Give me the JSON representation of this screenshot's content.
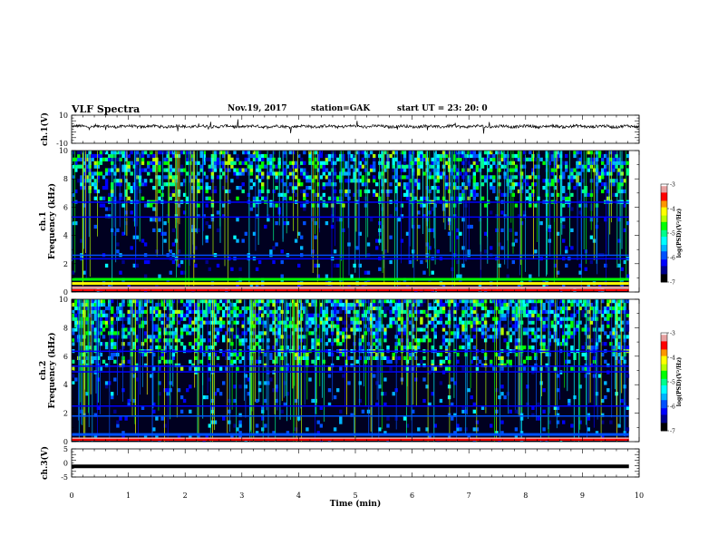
{
  "header": {
    "title": "VLF Spectra",
    "date": "Nov.19, 2017",
    "station": "station=GAK",
    "start": "start  UT =   23: 20: 0"
  },
  "colors": {
    "background": "#000020",
    "trace": "#000000",
    "colormap": [
      "#000000",
      "#00008c",
      "#0000ff",
      "#0050ff",
      "#00b4ff",
      "#00ffff",
      "#00ff8c",
      "#00ff00",
      "#b4ff00",
      "#ffff00",
      "#ff9600",
      "#ff0000",
      "#e6a0a0",
      "#ffffff"
    ]
  },
  "chart_data": [
    {
      "type": "line",
      "name": "ch1-waveform",
      "ylabel": "ch.1(V)",
      "ylim": [
        -10,
        10
      ],
      "yticks": [
        "10",
        "-10"
      ],
      "xlim": [
        0,
        10
      ],
      "trace_level": 2.0,
      "trace_noise": 1.0
    },
    {
      "type": "heatmap",
      "name": "ch1-spectrogram",
      "ylabel": "ch.1\nFrequency (kHz)",
      "ylim": [
        0,
        10
      ],
      "yticks": [
        "0",
        "2",
        "4",
        "6",
        "8",
        "10"
      ],
      "xlim": [
        0,
        9.82
      ],
      "colorbar": {
        "label": "log(PSD)(V²/Hz)",
        "range": [
          -7,
          -3
        ],
        "ticks": [
          "-3",
          "-4",
          "-5",
          "-6",
          "-7"
        ]
      },
      "bands": [
        {
          "f": 0.3,
          "level": -3.2
        },
        {
          "f": 0.6,
          "level": -4.1
        },
        {
          "f": 0.9,
          "level": -4.6
        },
        {
          "f": 2.35,
          "level": -6.2
        },
        {
          "f": 2.6,
          "level": -6.0
        },
        {
          "f": 5.3,
          "level": -6.3
        },
        {
          "f": 6.35,
          "level": -6.3
        }
      ],
      "high_freq_activity_above_khz": 6.0
    },
    {
      "type": "heatmap",
      "name": "ch2-spectrogram",
      "ylabel": "ch.2\nFrequency (kHz)",
      "ylim": [
        0,
        10
      ],
      "yticks": [
        "0",
        "2",
        "4",
        "6",
        "8",
        "10"
      ],
      "xlim": [
        0,
        9.82
      ],
      "colorbar": {
        "label": "log(PSD)(V²/Hz)",
        "range": [
          -7,
          -3
        ],
        "ticks": [
          "-3",
          "-4",
          "-5",
          "-6",
          "-7"
        ]
      },
      "bands": [
        {
          "f": 0.2,
          "level": -3.3
        },
        {
          "f": 0.5,
          "level": -6.0
        },
        {
          "f": 1.8,
          "level": -6.0
        },
        {
          "f": 2.5,
          "level": -6.3
        },
        {
          "f": 4.9,
          "level": -6.1
        },
        {
          "f": 5.3,
          "level": -6.3
        },
        {
          "f": 6.35,
          "level": -6.3
        }
      ],
      "high_freq_activity_above_khz": 5.0
    },
    {
      "type": "line",
      "name": "ch3-waveform",
      "ylabel": "ch.3(V)",
      "ylim": [
        -5,
        5
      ],
      "yticks": [
        "5",
        "0",
        "-5"
      ],
      "xlim": [
        0,
        10
      ],
      "trace_level": -1.2
    }
  ],
  "xaxis": {
    "label": "Time (min)",
    "range": [
      0,
      10
    ],
    "ticks": [
      "0",
      "1",
      "2",
      "3",
      "4",
      "5",
      "6",
      "7",
      "8",
      "9",
      "10"
    ]
  }
}
